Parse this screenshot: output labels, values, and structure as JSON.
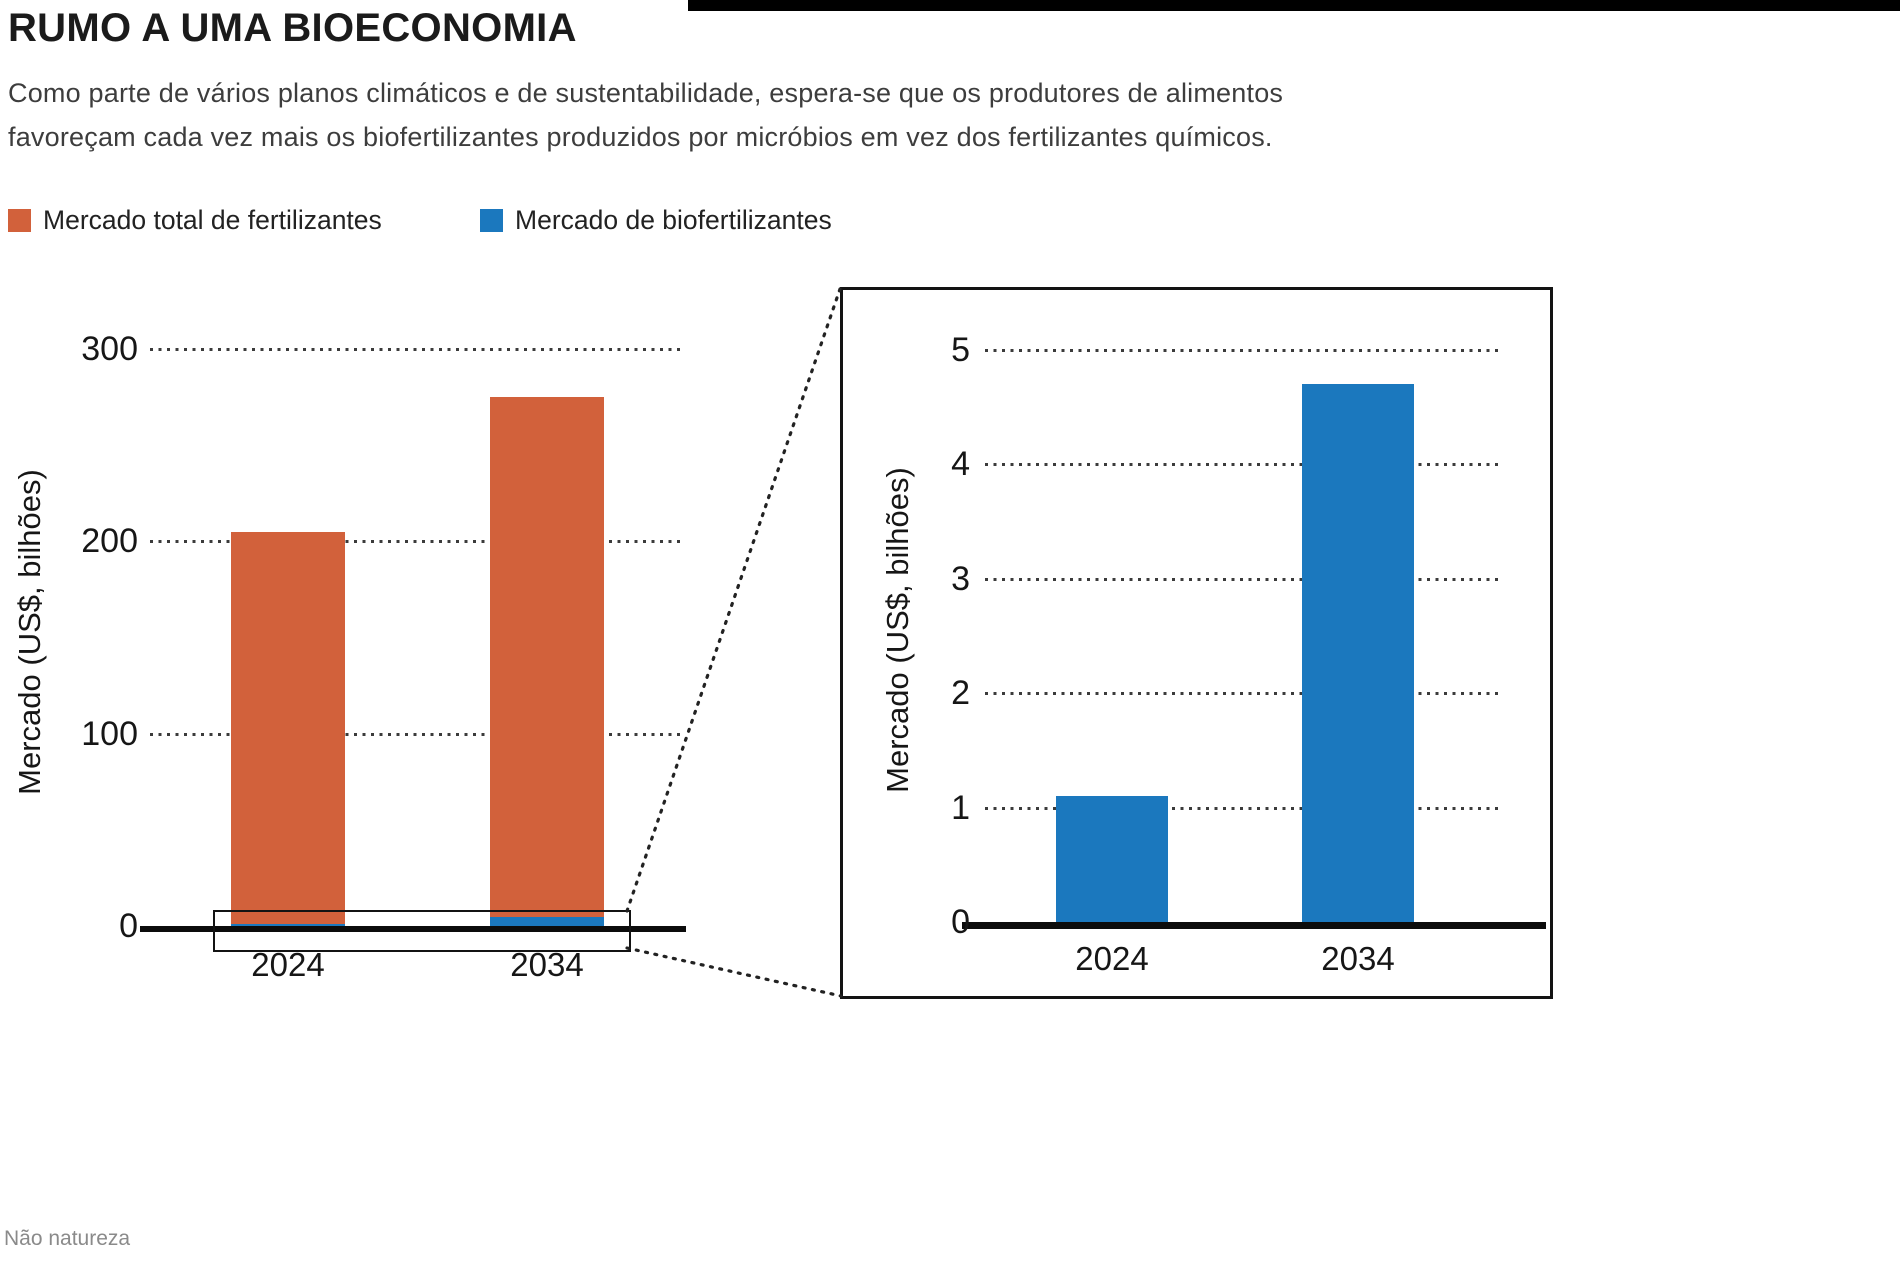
{
  "page": {
    "title": "RUMO A UMA BIOECONOMIA",
    "subtitle_line1": "Como parte de vários planos climáticos e de sustentabilidade, espera-se que os produtores de alimentos",
    "subtitle_line2": "favoreçam cada vez mais os biofertilizantes produzidos por micróbios em vez dos fertilizantes químicos.",
    "source": "Não natureza"
  },
  "legend": [
    {
      "label": "Mercado total de fertilizantes",
      "color": "#d2613b"
    },
    {
      "label": "Mercado de biofertilizantes",
      "color": "#1b78be"
    }
  ],
  "colors": {
    "orange": "#d2613b",
    "blue": "#1b78be",
    "axis": "#0c0c0c",
    "grid": "#3b3b3b"
  },
  "chart_data": [
    {
      "type": "bar",
      "name": "total-fertilizer-market",
      "title": "",
      "categories": [
        "2024",
        "2034"
      ],
      "series": [
        {
          "name": "Mercado total de fertilizantes",
          "values": [
            205,
            275
          ],
          "color": "#d2613b"
        },
        {
          "name": "Mercado de biofertilizantes",
          "values": [
            1.1,
            4.7
          ],
          "color": "#1b78be"
        }
      ],
      "xlabel": "",
      "ylabel": "Mercado (US$, bilhões)",
      "yticks": [
        0,
        100,
        200,
        300
      ],
      "ylim": [
        0,
        300
      ],
      "grid": "dotted-horizontal",
      "legend_position": "top"
    },
    {
      "type": "bar",
      "name": "biofertilizer-market-zoom-inset",
      "title": "",
      "categories": [
        "2024",
        "2034"
      ],
      "series": [
        {
          "name": "Mercado de biofertilizantes",
          "values": [
            1.1,
            4.7
          ],
          "color": "#1b78be"
        }
      ],
      "xlabel": "",
      "ylabel": "Mercado (US$, bilhões)",
      "yticks": [
        0,
        1,
        2,
        3,
        4,
        5
      ],
      "ylim": [
        0,
        5
      ],
      "grid": "dotted-horizontal",
      "legend_position": "none"
    }
  ]
}
